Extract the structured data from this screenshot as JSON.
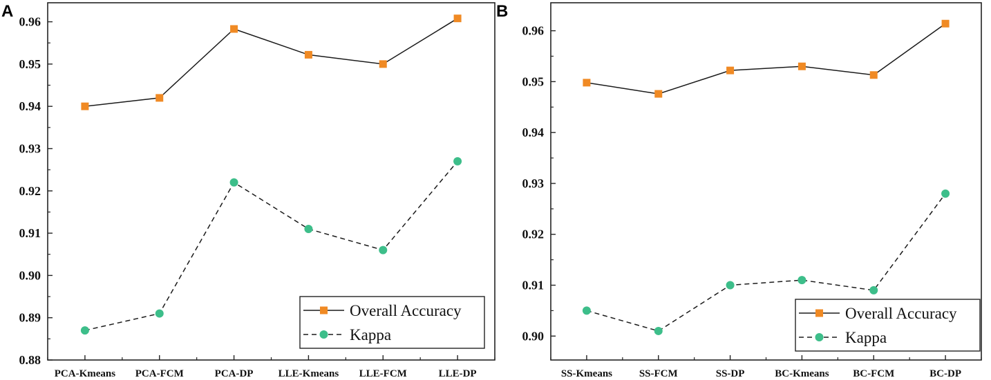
{
  "chart_data": [
    {
      "type": "line",
      "panel_label": "A",
      "categories": [
        "PCA-Kmeans",
        "PCA-FCM",
        "PCA-DP",
        "LLE-Kmeans",
        "LLE-FCM",
        "LLE-DP"
      ],
      "series": [
        {
          "name": "Overall Accuracy",
          "style": "solid",
          "marker": "square",
          "color": "#F08A24",
          "values": [
            0.94,
            0.942,
            0.9583,
            0.9522,
            0.95,
            0.9608
          ]
        },
        {
          "name": "Kappa",
          "style": "dashed",
          "marker": "circle",
          "color": "#3DBE8A",
          "values": [
            0.887,
            0.891,
            0.922,
            0.911,
            0.906,
            0.927
          ]
        }
      ],
      "yticks": [
        "0.88",
        "0.89",
        "0.90",
        "0.91",
        "0.92",
        "0.93",
        "0.94",
        "0.95",
        "0.96"
      ],
      "ylim": [
        0.88,
        0.9645
      ],
      "legend_position": "bottom-right",
      "title": "",
      "xlabel": "",
      "ylabel": ""
    },
    {
      "type": "line",
      "panel_label": "B",
      "categories": [
        "SS-Kmeans",
        "SS-FCM",
        "SS-DP",
        "BC-Kmeans",
        "BC-FCM",
        "BC-DP"
      ],
      "series": [
        {
          "name": "Overall Accuracy",
          "style": "solid",
          "marker": "square",
          "color": "#F08A24",
          "values": [
            0.9498,
            0.9476,
            0.9522,
            0.953,
            0.9513,
            0.9614
          ]
        },
        {
          "name": "Kappa",
          "style": "dashed",
          "marker": "circle",
          "color": "#3DBE8A",
          "values": [
            0.905,
            0.901,
            0.91,
            0.911,
            0.909,
            0.928
          ]
        }
      ],
      "yticks": [
        "0.90",
        "0.91",
        "0.92",
        "0.93",
        "0.94",
        "0.95",
        "0.96"
      ],
      "ylim": [
        0.8953,
        0.9655
      ],
      "legend_position": "bottom-right",
      "title": "",
      "xlabel": "",
      "ylabel": ""
    }
  ]
}
